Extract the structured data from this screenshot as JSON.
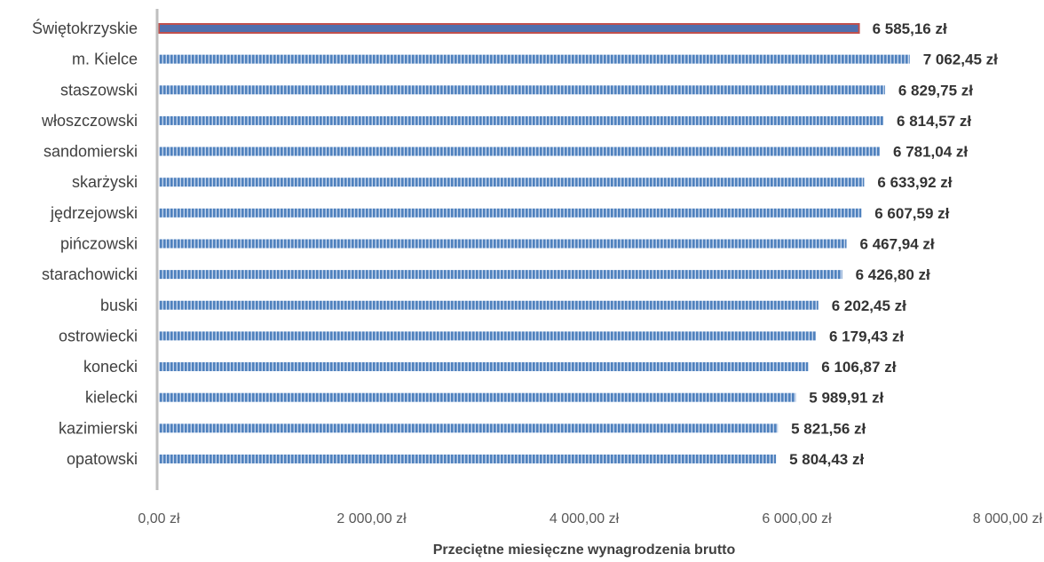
{
  "chart_data": {
    "type": "bar",
    "orientation": "horizontal",
    "categories": [
      "Świętokrzyskie",
      "m. Kielce",
      "staszowski",
      "włoszczowski",
      "sandomierski",
      "skarżyski",
      "jędrzejowski",
      "pińczowski",
      "starachowicki",
      "buski",
      "ostrowiecki",
      "konecki",
      "kielecki",
      "kazimierski",
      "opatowski"
    ],
    "values": [
      6585.16,
      7062.45,
      6829.75,
      6814.57,
      6781.04,
      6633.92,
      6607.59,
      6467.94,
      6426.8,
      6202.45,
      6179.43,
      6106.87,
      5989.91,
      5821.56,
      5804.43
    ],
    "value_labels": [
      "6 585,16 zł",
      "7 062,45 zł",
      "6 829,75 zł",
      "6 814,57 zł",
      "6 781,04 zł",
      "6 633,92 zł",
      "6 607,59 zł",
      "6 467,94 zł",
      "6 426,80 zł",
      "6 202,45 zł",
      "6 179,43 zł",
      "6 106,87 zł",
      "5 989,91 zł",
      "5 821,56 zł",
      "5 804,43 zł"
    ],
    "highlighted_category": "Świętokrzyskie",
    "xlabel": "Przeciętne miesięczne wynagrodzenia brutto",
    "ylabel": "",
    "xlim": [
      0,
      8000
    ],
    "x_ticks": [
      0,
      2000,
      4000,
      6000,
      8000
    ],
    "x_tick_labels": [
      "0,00 zł",
      "2 000,00 zł",
      "4 000,00 zł",
      "6 000,00 zł",
      "8 000,00 zł"
    ],
    "grid": false,
    "colors": {
      "bar": "#4f81bd",
      "bar_stripe": "#c6d6ee",
      "highlight_fill": "#4f6fae",
      "highlight_border": "#c0504d",
      "axis": "#bfbfbf"
    }
  }
}
